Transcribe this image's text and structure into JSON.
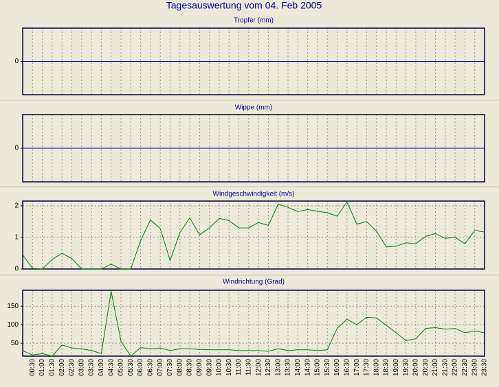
{
  "title": "Tagesauswertung vom 04. Feb 2005",
  "chart_data": [
    {
      "type": "line",
      "title": "Tropfer (mm)",
      "color": "#0000c0",
      "ylim": [
        -1,
        1
      ],
      "yticks": [
        0
      ],
      "grid": true,
      "values": [
        0,
        0,
        0,
        0,
        0,
        0,
        0,
        0,
        0,
        0,
        0,
        0,
        0,
        0,
        0,
        0,
        0,
        0,
        0,
        0,
        0,
        0,
        0,
        0,
        0,
        0,
        0,
        0,
        0,
        0,
        0,
        0,
        0,
        0,
        0,
        0,
        0,
        0,
        0,
        0,
        0,
        0,
        0,
        0,
        0,
        0,
        0,
        0
      ]
    },
    {
      "type": "line",
      "title": "Wippe (mm)",
      "color": "#0000c0",
      "ylim": [
        -1,
        1
      ],
      "yticks": [
        0
      ],
      "grid": true,
      "values": [
        0,
        0,
        0,
        0,
        0,
        0,
        0,
        0,
        0,
        0,
        0,
        0,
        0,
        0,
        0,
        0,
        0,
        0,
        0,
        0,
        0,
        0,
        0,
        0,
        0,
        0,
        0,
        0,
        0,
        0,
        0,
        0,
        0,
        0,
        0,
        0,
        0,
        0,
        0,
        0,
        0,
        0,
        0,
        0,
        0,
        0,
        0,
        0
      ]
    },
    {
      "type": "line",
      "title": "Windgeschwindigkeit (m/s)",
      "color": "#008000",
      "ylim": [
        0,
        2.15
      ],
      "yticks": [
        0,
        1,
        2
      ],
      "grid": true,
      "values": [
        0.45,
        0.02,
        0,
        0.3,
        0.5,
        0.33,
        0,
        0,
        0,
        0.15,
        0,
        0,
        0.9,
        1.55,
        1.28,
        0.27,
        1.15,
        1.62,
        1.08,
        1.3,
        1.6,
        1.53,
        1.3,
        1.3,
        1.47,
        1.38,
        2.05,
        1.95,
        1.82,
        1.88,
        1.83,
        1.78,
        1.67,
        2.12,
        1.42,
        1.5,
        1.2,
        0.7,
        0.72,
        0.83,
        0.8,
        1.03,
        1.12,
        0.97,
        1.0,
        0.8,
        1.22,
        1.17
      ]
    },
    {
      "type": "line",
      "title": "Windrichtung (Grad)",
      "color": "#008000",
      "ylim": [
        15,
        193
      ],
      "yticks": [
        50,
        100,
        150
      ],
      "grid": true,
      "categories": [
        null,
        "00:30",
        "01:00",
        "01:30",
        "02:00",
        "02:30",
        "03:00",
        "03:30",
        "04:00",
        "04:30",
        "05:00",
        "05:30",
        "06:00",
        "06:30",
        "07:00",
        "07:30",
        "08:00",
        "08:30",
        "09:00",
        "09:30",
        "10:00",
        "10:30",
        "11:00",
        "11:30",
        "12:00",
        "12:30",
        "13:00",
        "13:30",
        "14:00",
        "14:30",
        "15:00",
        "15:30",
        "16:00",
        "16:30",
        "17:00",
        "17:30",
        "18:00",
        "18:30",
        "19:00",
        "19:30",
        "20:00",
        "20:30",
        "21:00",
        "21:30",
        "22:00",
        "22:30",
        "23:00",
        "23:30"
      ],
      "values": [
        30,
        18,
        22,
        15,
        45,
        37,
        35,
        30,
        22,
        190,
        55,
        15,
        38,
        35,
        37,
        30,
        35,
        35,
        33,
        32,
        32,
        32,
        30,
        30,
        30,
        28,
        35,
        30,
        32,
        32,
        30,
        32,
        90,
        115,
        100,
        120,
        118,
        98,
        78,
        57,
        62,
        90,
        92,
        88,
        90,
        78,
        83,
        78
      ]
    }
  ]
}
